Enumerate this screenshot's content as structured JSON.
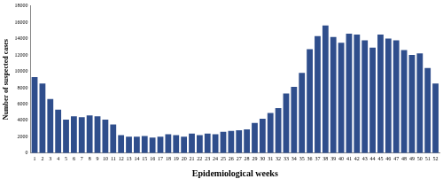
{
  "chart_data": {
    "type": "bar",
    "x_label": "Epidemiological weeks",
    "y_label": "Number of suspected cases",
    "categories": [
      "1",
      "2",
      "3",
      "4",
      "5",
      "6",
      "7",
      "8",
      "9",
      "10",
      "11",
      "12",
      "13",
      "14",
      "15",
      "16",
      "17",
      "18",
      "19",
      "20",
      "21",
      "22",
      "23",
      "24",
      "25",
      "26",
      "27",
      "28",
      "29",
      "30",
      "31",
      "32",
      "33",
      "34",
      "35",
      "36",
      "37",
      "38",
      "39",
      "40",
      "41",
      "42",
      "43",
      "44",
      "45",
      "46",
      "47",
      "48",
      "49",
      "50",
      "51",
      "52"
    ],
    "values": [
      9300,
      8500,
      6600,
      5300,
      4100,
      4500,
      4400,
      4600,
      4500,
      4100,
      3500,
      2200,
      2000,
      2000,
      2100,
      1900,
      2000,
      2300,
      2200,
      2000,
      2400,
      2200,
      2400,
      2300,
      2600,
      2700,
      2800,
      2900,
      3700,
      4200,
      4900,
      5500,
      7300,
      8100,
      9800,
      12700,
      14300,
      15600,
      14200,
      13500,
      14600,
      14500,
      13800,
      12900,
      14500,
      14000,
      13800,
      12600,
      12000,
      12200,
      10400,
      8500
    ],
    "color": "#2f4e8c",
    "ylim": [
      0,
      18000
    ],
    "yticks": [
      0,
      2000,
      4000,
      6000,
      8000,
      10000,
      12000,
      14000,
      16000,
      18000
    ],
    "grid": false
  }
}
